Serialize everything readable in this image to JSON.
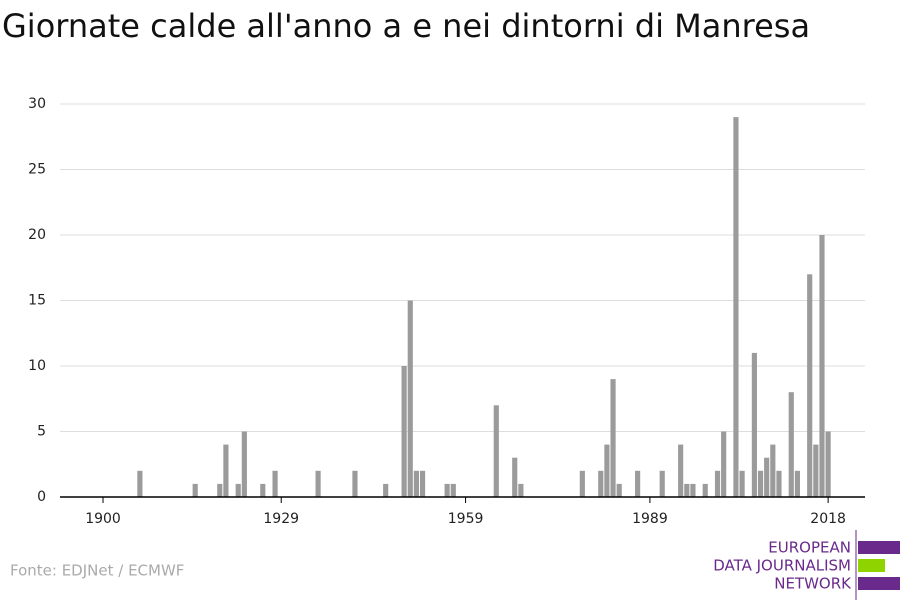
{
  "chart_data": {
    "type": "bar",
    "title": "Giornate calde all'anno a e nei dintorni di Manresa",
    "x": [
      1900,
      1901,
      1902,
      1903,
      1904,
      1905,
      1906,
      1907,
      1908,
      1909,
      1910,
      1911,
      1912,
      1913,
      1914,
      1915,
      1916,
      1917,
      1918,
      1919,
      1920,
      1921,
      1922,
      1923,
      1924,
      1925,
      1926,
      1927,
      1928,
      1929,
      1930,
      1931,
      1932,
      1933,
      1934,
      1935,
      1936,
      1937,
      1938,
      1939,
      1940,
      1941,
      1942,
      1943,
      1944,
      1945,
      1946,
      1947,
      1948,
      1949,
      1950,
      1951,
      1952,
      1953,
      1954,
      1955,
      1956,
      1957,
      1958,
      1959,
      1960,
      1961,
      1962,
      1963,
      1964,
      1965,
      1966,
      1967,
      1968,
      1969,
      1970,
      1971,
      1972,
      1973,
      1974,
      1975,
      1976,
      1977,
      1978,
      1979,
      1980,
      1981,
      1982,
      1983,
      1984,
      1985,
      1986,
      1987,
      1988,
      1989,
      1990,
      1991,
      1992,
      1993,
      1994,
      1995,
      1996,
      1997,
      1998,
      1999,
      2000,
      2001,
      2002,
      2003,
      2004,
      2005,
      2006,
      2007,
      2008,
      2009,
      2010,
      2011,
      2012,
      2013,
      2014,
      2015,
      2016,
      2017,
      2018
    ],
    "values": [
      0,
      0,
      0,
      0,
      0,
      0,
      2,
      0,
      0,
      0,
      0,
      0,
      0,
      0,
      0,
      1,
      0,
      0,
      0,
      1,
      4,
      0,
      1,
      5,
      0,
      0,
      1,
      0,
      2,
      0,
      0,
      0,
      0,
      0,
      0,
      2,
      0,
      0,
      0,
      0,
      0,
      2,
      0,
      0,
      0,
      0,
      1,
      0,
      0,
      10,
      15,
      2,
      2,
      0,
      0,
      0,
      1,
      1,
      0,
      0,
      0,
      0,
      0,
      0,
      7,
      0,
      0,
      3,
      1,
      0,
      0,
      0,
      0,
      0,
      0,
      0,
      0,
      0,
      2,
      0,
      0,
      2,
      4,
      9,
      1,
      0,
      0,
      2,
      0,
      0,
      0,
      2,
      0,
      0,
      4,
      1,
      1,
      0,
      1,
      0,
      2,
      5,
      0,
      29,
      2,
      0,
      11,
      2,
      3,
      4,
      2,
      0,
      8,
      2,
      0,
      17,
      4,
      20,
      5
    ],
    "color": "#9b9b9b",
    "xlim": [
      1893,
      2024
    ],
    "xticks": [
      1900,
      1929,
      1959,
      1989,
      2018
    ],
    "ylim": [
      0,
      30
    ],
    "yticks": [
      0,
      5,
      10,
      15,
      20,
      25,
      30
    ],
    "grid": true,
    "source": "Fonte: EDJNet / ECMWF",
    "logo": [
      "EUROPEAN",
      "DATA JOURNALISM",
      "NETWORK"
    ]
  }
}
